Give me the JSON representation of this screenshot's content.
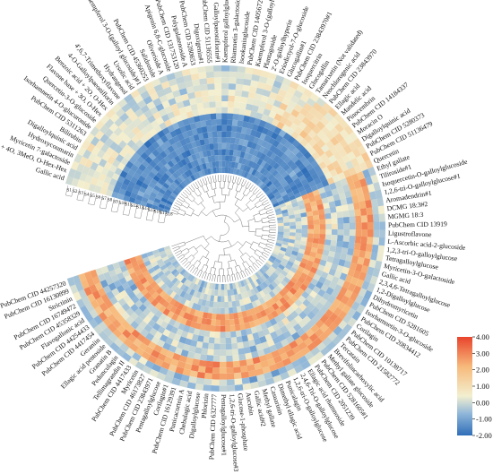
{
  "chart_data": {
    "type": "heatmap",
    "layout": "circular",
    "samples": [
      "S1",
      "S2",
      "S3",
      "S4",
      "S5",
      "S6",
      "S7",
      "S8",
      "S9",
      "S10",
      "S11",
      "S12",
      "S13",
      "S14",
      "S15",
      "S16",
      "S17",
      "S18"
    ],
    "colorbar": {
      "min": -2.0,
      "max": 4.0,
      "ticks": [
        "4.00",
        "3.00",
        "2.00",
        "1.00",
        "0.00",
        "-1.00",
        "-2.00"
      ],
      "colors": [
        "#2f6eb8",
        "#8fb6d9",
        "#f3efd0",
        "#f7b97b",
        "#e8442c"
      ]
    },
    "cluster_a_value": 1.6,
    "cluster_b_value": -1.4,
    "rows": [
      "Gallic acid",
      "Flavone base + 4O, 3MeO, O-Hex-Hex",
      "Myricetin 7-galactoside",
      "Hydroxycoumarin",
      "Digalloylquinic acid",
      "Bilirubin",
      "PubChem CID 5311263",
      "Isorhamnetin 4-O-glucuronide",
      "Quercetin-3-O-glucoside",
      "Flavone base + 3O, O-Hex",
      "Benzoic acid + 2O, O-Hex",
      "4-O-Galloylpaeoniflorin",
      "4',6,7-Trimethoxyflavone",
      "Hydrangenol",
      "Ursolic acid",
      "Kaempferol 3-O-(galloyl glucoside)#1",
      "PubChem CID 45360253",
      "Salidroside",
      "Oliveriside A",
      "Apigenin 6,8-C-glucoside",
      "PubChem CID 131753120",
      "Polygalatenoside A",
      "PubChem CID 5280653",
      "Digoxigenin#1",
      "PubChem CID 51136555",
      "Galloylpaeoniflorin#1",
      "Kaempferol galloylglucoside",
      "Rhamnetin 3-galactoside",
      "Isookaninglucoside",
      "PubChem CID 14056725",
      "Kaempferol 3-O-(galloyl glucoside)",
      "Plantagoside",
      "2'-O-galloylhyperin",
      "Eriodictyol-7-O-glucoside",
      "Glucogallin#1",
      "PubChem CID 23843970#1",
      "Isoquercitrin",
      "Glucogallin",
      "Tamarixetin (Not validated)",
      "Neochlorogenic acid",
      "PubChem CID 23843970",
      "Ellagic acid",
      "Mandelic acid",
      "Pinocembrin",
      "PubChem CID 14184337",
      "Moracin O",
      "Digalloylquinic acid",
      "PubChem CID 5280373",
      "PubChem CID 51136479",
      "Quercetin",
      "Ethyl gallate",
      "Tiliroside#1",
      "Isoquercetin-O-galloylglucoside",
      "1,2,6-tri-O-galloylglucose#1",
      "Aromadendrin#1",
      "DCMG 18:3#2",
      "MGMG 18:3",
      "PubChem CID 13919",
      "Ligustroflavone",
      "L-Ascorbic acid-2-glucoside",
      "1,2,3-tri-O-galloylglucose",
      "Tetragalloylglucose",
      "Myricetin-3-O-galactoside",
      "Gallic acid",
      "2,3,4,6-Tetragalloylglucose",
      "1,2-Digalloylglucose",
      "Dihydromyricetin",
      "PubChem CID 5281605",
      "Isorhamnetin-3-O-glucoside",
      "PubChem CID 20834412",
      "Corilagin",
      "PubChem CID 10138717",
      "PubChem CID 21582772",
      "Tercatain",
      "Brevifolincarboxylic acid",
      "Methyl gallate glucoside",
      "PubChem CID 5281605#1",
      "PubChem CID 2051239",
      "Ellagic acid rhamnoside",
      "2,4,6-Tri-O-galloylglucose",
      "1,2,6-tri-O-galloylglucose",
      "Punicalagin",
      "Dimethyl ellagic acid",
      "Casuarinin",
      "Methyl gallate",
      "Gallic acid#2",
      "Aucubin",
      "Glucose-1-phosphate",
      "1,2,6-tri-O-galloylglucose#3",
      "Pentagalloylglucose#1",
      "PubChem CID 6327777",
      "Phlorizin",
      "Digalloylglucose",
      "Chebulagic acid",
      "Punicacortein A",
      "PubChem CID 16129391",
      "Corilagin#1",
      "Pentagalloylglucose",
      "PubChem CID 23843971",
      "PubChem CID 46173827",
      "Myricetin",
      "PubChem CID 4417433",
      "Tellimagrandin II",
      "Pedunculagin",
      "Granatin B",
      "Ellagic acid pentoside",
      "Geraniin",
      "PubChem CID 4417454",
      "PubChem CID 44254433",
      "Flavogallonic acid",
      "PubChem CID 45358329",
      "PubChem CID 16749472",
      "Strictinin",
      "PubChem CID 16130899",
      "PubChem CID 44257320"
    ]
  }
}
